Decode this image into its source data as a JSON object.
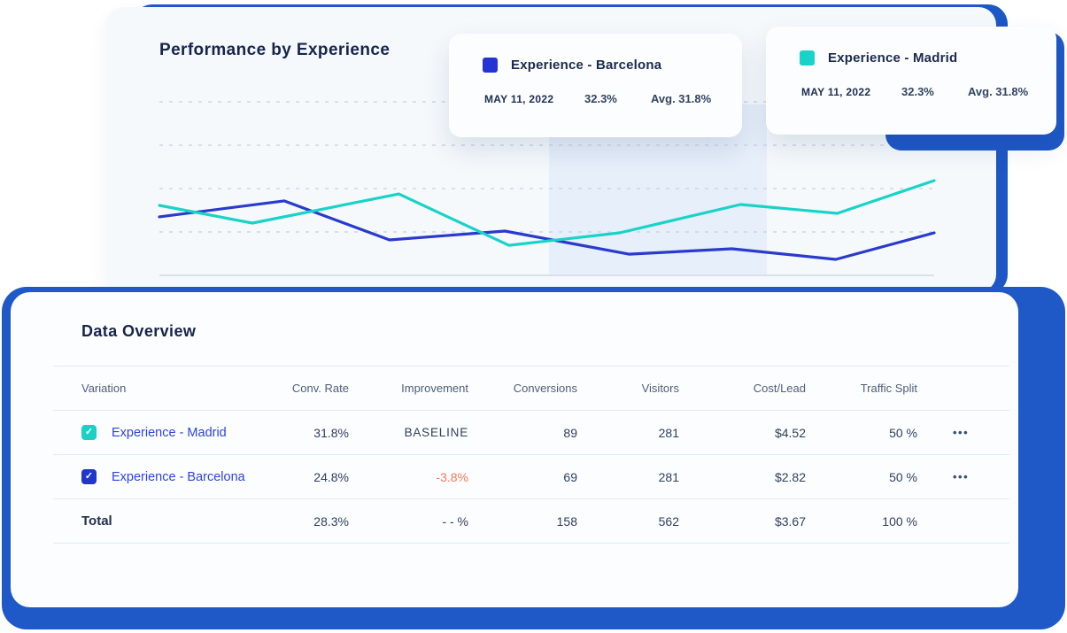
{
  "colors": {
    "accent_blue": "#1F58C7",
    "series_barcelona": "#2A3ACC",
    "series_madrid": "#19D3C8",
    "negative_value": "#F27A5C",
    "highlight_band": "#E6EFFA"
  },
  "icons": {
    "checkmark": "✓",
    "row_menu": "•••"
  },
  "chart_card": {
    "title": "Performance by Experience",
    "tooltips": [
      {
        "name": "Experience - Barcelona",
        "color": "#2334D4",
        "date": "MAY 11, 2022",
        "value": "32.3%",
        "avg": "Avg. 31.8%"
      },
      {
        "name": "Experience - Madrid",
        "color": "#19D3C8",
        "date": "MAY 11, 2022",
        "value": "32.3%",
        "avg": "Avg. 31.8%"
      }
    ]
  },
  "chart_data": {
    "type": "line",
    "title": "Performance by Experience",
    "xlabel": "",
    "ylabel": "",
    "note": "no axis tick labels visible; values estimated as % of plot scale (baseline gridline = 0, top gridline = 100)",
    "grid": "4 dashed horizontal gridlines + solid baseline",
    "legend_position": "floating tooltip cards top-right",
    "grid_color_dashed": "#CBD7E5",
    "grid_color_solid": "#D8E1EB",
    "gridlines": [
      {
        "value": 100,
        "style": "dashed"
      },
      {
        "value": 75,
        "style": "dashed"
      },
      {
        "value": 50,
        "style": "dashed"
      },
      {
        "value": 25,
        "style": "dashed"
      },
      {
        "value": 0,
        "style": "solid"
      }
    ],
    "highlight_band": {
      "from_x_pct": 50.3,
      "to_x_pct": 78.4,
      "top_value": 98.5,
      "color": "#E6EFFA"
    },
    "series": [
      {
        "name": "Experience - Barcelona",
        "color": "#2A3ACC",
        "points": [
          [
            0,
            33.7
          ],
          [
            16.1,
            42.9
          ],
          [
            29.7,
            20.4
          ],
          [
            44.6,
            25.5
          ],
          [
            60.6,
            12.2
          ],
          [
            73.9,
            15.3
          ],
          [
            87.3,
            9.2
          ],
          [
            100,
            24.5
          ]
        ]
      },
      {
        "name": "Experience - Madrid",
        "color": "#19D3C8",
        "points": [
          [
            0,
            40.3
          ],
          [
            12,
            30.1
          ],
          [
            30.9,
            46.9
          ],
          [
            45.1,
            17.3
          ],
          [
            59.4,
            24.5
          ],
          [
            75,
            40.8
          ],
          [
            87.5,
            35.7
          ],
          [
            100,
            54.6
          ]
        ]
      }
    ]
  },
  "table_card": {
    "title": "Data Overview",
    "columns": [
      "Variation",
      "Conv. Rate",
      "Improvement",
      "Conversions",
      "Visitors",
      "Cost/Lead",
      "Traffic Split"
    ],
    "rows": [
      {
        "checked": true,
        "checkbox_color": "#1ECFC4",
        "name": "Experience - Madrid",
        "conv_rate": "31.8%",
        "improvement": "BASELINE",
        "conversions": "89",
        "visitors": "281",
        "cost_per_lead": "$4.52",
        "traffic_split": "50 %"
      },
      {
        "checked": true,
        "checkbox_color": "#2136CB",
        "name": "Experience - Barcelona",
        "conv_rate": "24.8%",
        "improvement": "-3.8%",
        "conversions": "69",
        "visitors": "281",
        "cost_per_lead": "$2.82",
        "traffic_split": "50 %"
      }
    ],
    "total": {
      "label": "Total",
      "conv_rate": "28.3%",
      "improvement": "- - %",
      "conversions": "158",
      "visitors": "562",
      "cost_per_lead": "$3.67",
      "traffic_split": "100 %"
    }
  }
}
